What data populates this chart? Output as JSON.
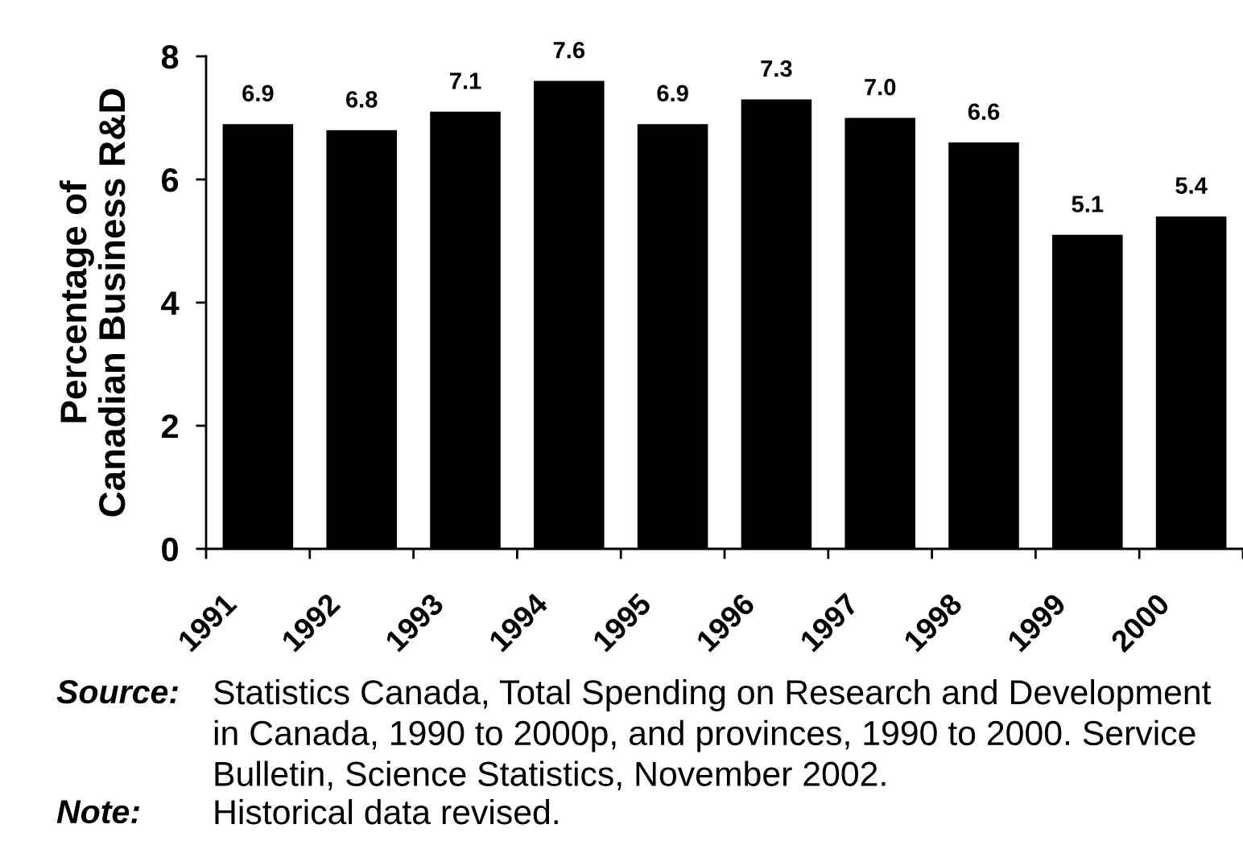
{
  "chart_data": {
    "type": "bar",
    "ylabel": "Percentage of\nCanadian Business R&D",
    "categories": [
      "1991",
      "1992",
      "1993",
      "1994",
      "1995",
      "1996",
      "1997",
      "1998",
      "1999",
      "2000"
    ],
    "values": [
      6.9,
      6.8,
      7.1,
      7.6,
      6.9,
      7.3,
      7.0,
      6.6,
      5.1,
      5.4
    ],
    "value_labels": [
      "6.9",
      "6.8",
      "7.1",
      "7.6",
      "6.9",
      "7.3",
      "7.0",
      "6.6",
      "5.1",
      "5.4"
    ],
    "color": "#000000",
    "ylim": [
      0,
      8
    ],
    "yticks": [
      0,
      2,
      4,
      6,
      8
    ],
    "annotations": [
      "Source:",
      "Statistics Canada, Total Spending on Research and Development in Canada, 1990 to 2000p, and provinces, 1990 to 2000. Service Bulletin, Science Statistics, November 2002.",
      "Note:",
      "Historical data revised."
    ]
  }
}
